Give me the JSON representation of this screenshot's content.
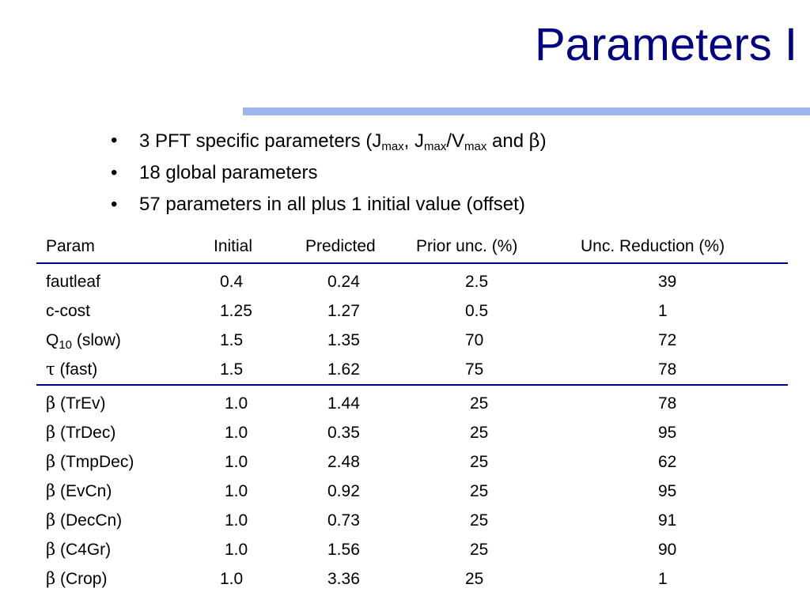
{
  "slide": {
    "title": "Parameters I",
    "accent_color": "#9cb6ec",
    "title_color": "#000080"
  },
  "bullets": [
    {
      "text_before": "3 PFT specific parameters (J",
      "sub1": "max",
      "mid1": ", J",
      "sub2": "max",
      "mid2": "/V",
      "sub3": "max",
      "mid3": " and ",
      "greek": "β",
      "end": ")"
    },
    {
      "text": "18 global parameters"
    },
    {
      "text": "57 parameters in all plus 1 initial value (offset)"
    }
  ],
  "table": {
    "headers": [
      "Param",
      "Initial",
      "Predicted",
      "Prior unc. (%)",
      "Unc. Reduction (%)"
    ],
    "group1": [
      {
        "param": "fautleaf",
        "initial": "0.4",
        "predicted": "0.24",
        "prior": "2.5",
        "reduction": "39"
      },
      {
        "param": "c-cost",
        "initial": "1.25",
        "predicted": "1.27",
        "prior": "0.5",
        "reduction": "1"
      },
      {
        "param_base": "Q",
        "param_sub": "10",
        "param_rest": " (slow)",
        "initial": "1.5",
        "predicted": "1.35",
        "prior": "70",
        "reduction": "72"
      },
      {
        "param_greek": "τ",
        "param_rest": " (fast)",
        "initial": "1.5",
        "predicted": "1.62",
        "prior": "75",
        "reduction": "78"
      }
    ],
    "group2": [
      {
        "param_greek": "β",
        "param_rest": " (TrEv)",
        "initial": "1.0",
        "predicted": "1.44",
        "prior": "25",
        "reduction": "78"
      },
      {
        "param_greek": "β",
        "param_rest": " (TrDec)",
        "initial": "1.0",
        "predicted": "0.35",
        "prior": "25",
        "reduction": "95"
      },
      {
        "param_greek": "β",
        "param_rest": " (TmpDec)",
        "initial": "1.0",
        "predicted": "2.48",
        "prior": "25",
        "reduction": "62"
      },
      {
        "param_greek": "β",
        "param_rest": " (EvCn)",
        "initial": "1.0",
        "predicted": "0.92",
        "prior": "25",
        "reduction": "95"
      },
      {
        "param_greek": "β",
        "param_rest": " (DecCn)",
        "initial": "1.0",
        "predicted": "0.73",
        "prior": "25",
        "reduction": "91"
      },
      {
        "param_greek": "β",
        "param_rest": " (C4Gr)",
        "initial": "1.0",
        "predicted": "1.56",
        "prior": "25",
        "reduction": "90"
      },
      {
        "param_greek": "β",
        "param_rest": " (Crop)",
        "initial": "1.0",
        "predicted": "3.36",
        "prior": "25",
        "reduction": "1"
      }
    ]
  }
}
